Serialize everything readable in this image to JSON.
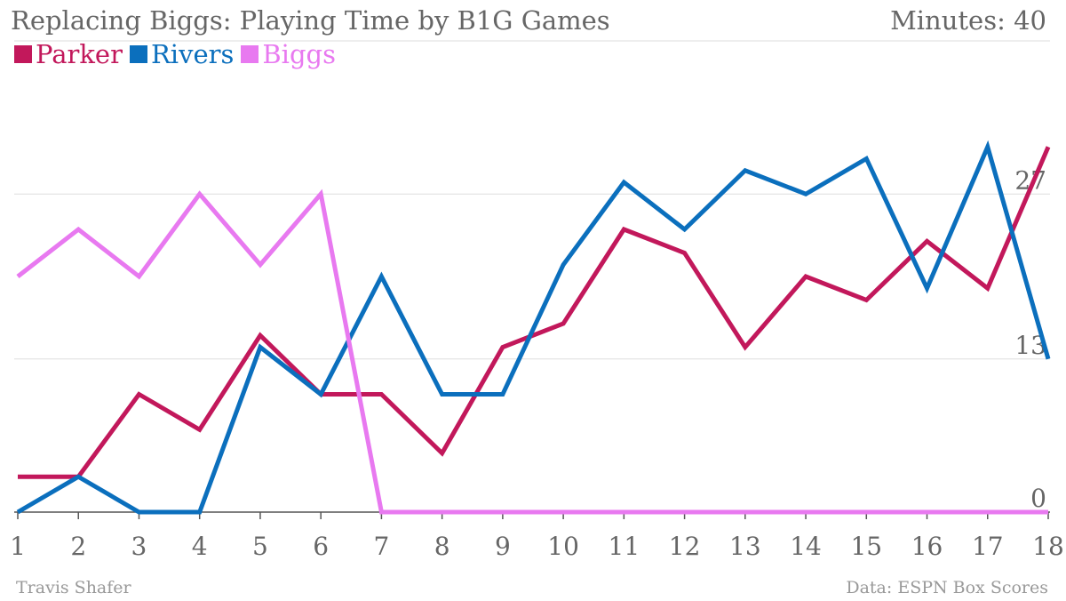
{
  "header": {
    "title": "Replacing Biggs: Playing Time by B1G Games",
    "max_label": "Minutes: 40"
  },
  "footer": {
    "credit": "Travis Shafer",
    "source": "Data: ESPN Box Scores"
  },
  "chart_data": {
    "type": "line",
    "title": "Replacing Biggs: Playing Time by B1G Games",
    "xlabel": "",
    "ylabel": "Minutes",
    "x": [
      1,
      2,
      3,
      4,
      5,
      6,
      7,
      8,
      9,
      10,
      11,
      12,
      13,
      14,
      15,
      16,
      17,
      18
    ],
    "ylim": [
      0,
      40
    ],
    "y_ticks": [
      0,
      13,
      27
    ],
    "grid": true,
    "legend_position": "top-left",
    "series": [
      {
        "name": "Parker",
        "color": "#c2185b",
        "values": [
          3,
          3,
          10,
          7,
          15,
          10,
          10,
          5,
          14,
          16,
          24,
          22,
          14,
          20,
          18,
          23,
          19,
          31
        ]
      },
      {
        "name": "Rivers",
        "color": "#0b6fbd",
        "values": [
          0,
          3,
          0,
          0,
          14,
          10,
          20,
          10,
          10,
          21,
          28,
          24,
          29,
          27,
          30,
          19,
          31,
          13
        ]
      },
      {
        "name": "Biggs",
        "color": "#e879f0",
        "values": [
          20,
          24,
          20,
          27,
          21,
          27,
          0,
          0,
          0,
          0,
          0,
          0,
          0,
          0,
          0,
          0,
          0,
          0
        ]
      }
    ]
  }
}
